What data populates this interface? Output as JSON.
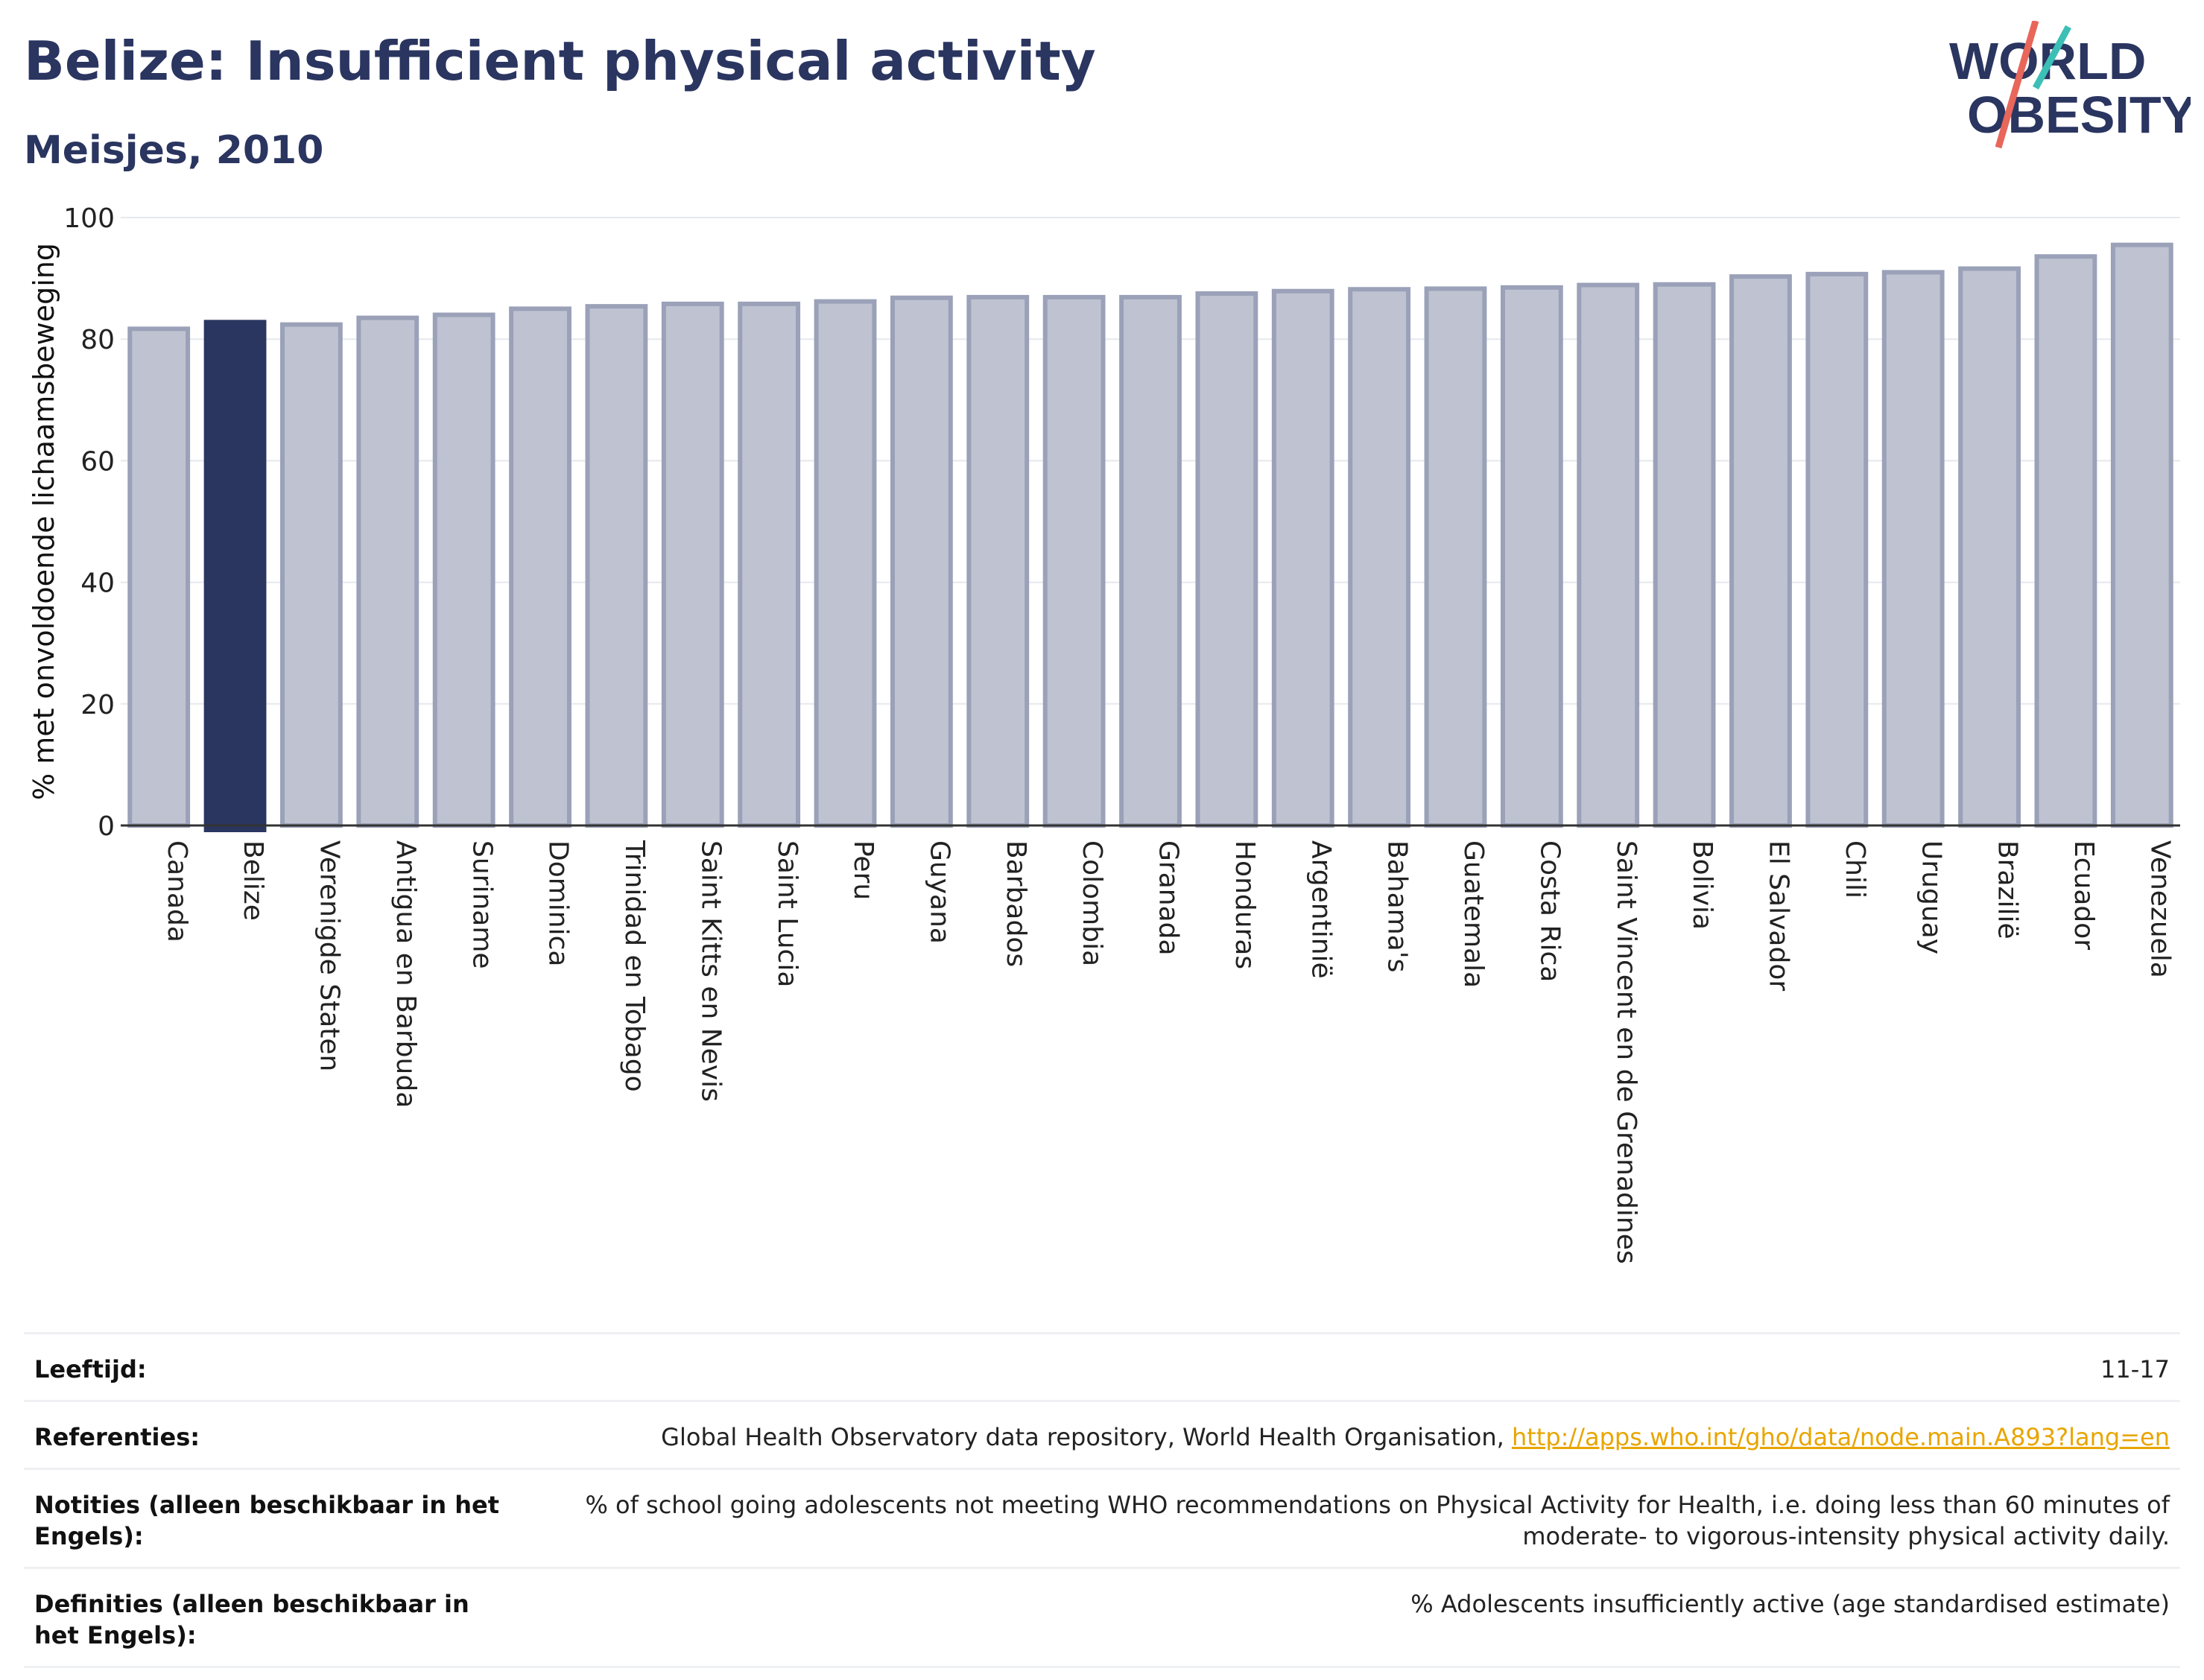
{
  "header": {
    "title": "Belize: Insufficient physical activity",
    "subtitle": "Meisjes, 2010"
  },
  "logo": {
    "line1": "WORLD",
    "line2": "OBESITY",
    "accent_colors": [
      "#3cbfb5",
      "#e8665a"
    ]
  },
  "chart_data": {
    "type": "bar",
    "title": "",
    "xlabel": "",
    "ylabel": "% met onvoldoende lichaamsbeweging",
    "ylim": [
      0,
      100
    ],
    "yticks": [
      0,
      20,
      40,
      60,
      80,
      100
    ],
    "grid": true,
    "highlight_category": "Belize",
    "colors": {
      "bar": "#bfc3d1",
      "bar_edge": "#9aa1b8",
      "highlight": "#2a3560"
    },
    "categories": [
      "Canada",
      "Belize",
      "Verenigde Staten",
      "Antigua en Barbuda",
      "Suriname",
      "Dominica",
      "Trinidad en Tobago",
      "Saint Kitts en Nevis",
      "Saint Lucia",
      "Peru",
      "Guyana",
      "Barbados",
      "Colombia",
      "Granada",
      "Honduras",
      "Argentinië",
      "Bahama's",
      "Guatemala",
      "Costa Rica",
      "Saint Vincent en de Grenadines",
      "Bolivia",
      "El Salvador",
      "Chili",
      "Uruguay",
      "Brazilië",
      "Ecuador",
      "Venezuela"
    ],
    "values": [
      81.7,
      82.8,
      82.4,
      83.5,
      84.0,
      85.0,
      85.4,
      85.8,
      85.8,
      86.2,
      86.8,
      86.9,
      86.9,
      86.9,
      87.5,
      87.9,
      88.2,
      88.3,
      88.5,
      88.9,
      89.0,
      90.3,
      90.7,
      91.0,
      91.6,
      93.6,
      95.5
    ]
  },
  "footer": {
    "rows": [
      {
        "label": "Leeftijd:",
        "value": "11-17"
      },
      {
        "label": "Referenties:",
        "value": "Global Health Observatory data repository, World Health Organisation, ",
        "link": "http://apps.who.int/gho/data/node.main.A893?lang=en"
      },
      {
        "label": "Notities (alleen beschikbaar in het Engels):",
        "value": "% of school going adolescents not meeting WHO recommendations on Physical Activity for Health, i.e. doing less than 60 minutes of moderate- to vigorous-intensity physical activity daily."
      },
      {
        "label": "Definities (alleen beschikbaar in het Engels):",
        "value": "% Adolescents insufficiently active (age standardised estimate)"
      }
    ]
  }
}
